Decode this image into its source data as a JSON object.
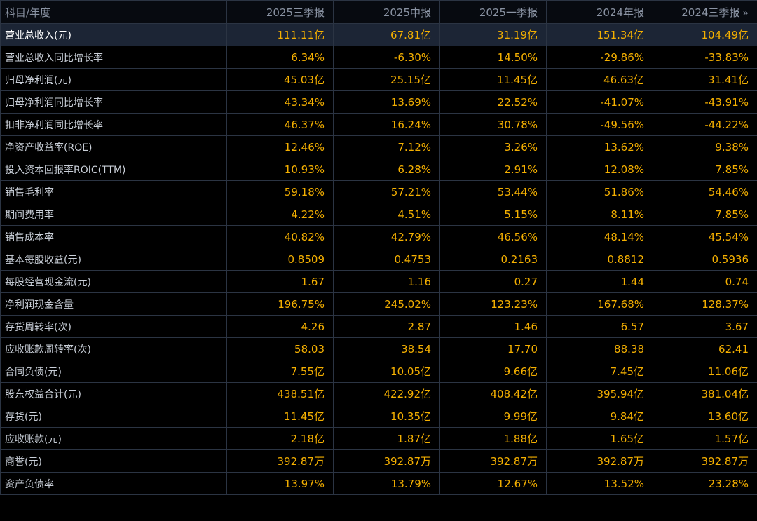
{
  "header": {
    "label": "科目/年度",
    "periods": [
      "2025三季报",
      "2025中报",
      "2025一季报",
      "2024年报",
      "2024三季报"
    ],
    "more_glyph": "»"
  },
  "rows": [
    {
      "label": "营业总收入(元)",
      "values": [
        "111.11亿",
        "67.81亿",
        "31.19亿",
        "151.34亿",
        "104.49亿"
      ]
    },
    {
      "label": "营业总收入同比增长率",
      "values": [
        "6.34%",
        "-6.30%",
        "14.50%",
        "-29.86%",
        "-33.83%"
      ]
    },
    {
      "label": "归母净利润(元)",
      "values": [
        "45.03亿",
        "25.15亿",
        "11.45亿",
        "46.63亿",
        "31.41亿"
      ]
    },
    {
      "label": "归母净利润同比增长率",
      "values": [
        "43.34%",
        "13.69%",
        "22.52%",
        "-41.07%",
        "-43.91%"
      ]
    },
    {
      "label": "扣非净利润同比增长率",
      "values": [
        "46.37%",
        "16.24%",
        "30.78%",
        "-49.56%",
        "-44.22%"
      ]
    },
    {
      "label": "净资产收益率(ROE)",
      "values": [
        "12.46%",
        "7.12%",
        "3.26%",
        "13.62%",
        "9.38%"
      ]
    },
    {
      "label": "投入资本回报率ROIC(TTM)",
      "values": [
        "10.93%",
        "6.28%",
        "2.91%",
        "12.08%",
        "7.85%"
      ]
    },
    {
      "label": "销售毛利率",
      "values": [
        "59.18%",
        "57.21%",
        "53.44%",
        "51.86%",
        "54.46%"
      ]
    },
    {
      "label": "期间费用率",
      "values": [
        "4.22%",
        "4.51%",
        "5.15%",
        "8.11%",
        "7.85%"
      ]
    },
    {
      "label": "销售成本率",
      "values": [
        "40.82%",
        "42.79%",
        "46.56%",
        "48.14%",
        "45.54%"
      ]
    },
    {
      "label": "基本每股收益(元)",
      "values": [
        "0.8509",
        "0.4753",
        "0.2163",
        "0.8812",
        "0.5936"
      ]
    },
    {
      "label": "每股经营现金流(元)",
      "values": [
        "1.67",
        "1.16",
        "0.27",
        "1.44",
        "0.74"
      ]
    },
    {
      "label": "净利润现金含量",
      "values": [
        "196.75%",
        "245.02%",
        "123.23%",
        "167.68%",
        "128.37%"
      ]
    },
    {
      "label": "存货周转率(次)",
      "values": [
        "4.26",
        "2.87",
        "1.46",
        "6.57",
        "3.67"
      ]
    },
    {
      "label": "应收账款周转率(次)",
      "values": [
        "58.03",
        "38.54",
        "17.70",
        "88.38",
        "62.41"
      ]
    },
    {
      "label": "合同负债(元)",
      "values": [
        "7.55亿",
        "10.05亿",
        "9.66亿",
        "7.45亿",
        "11.06亿"
      ]
    },
    {
      "label": "股东权益合计(元)",
      "values": [
        "438.51亿",
        "422.92亿",
        "408.42亿",
        "395.94亿",
        "381.04亿"
      ]
    },
    {
      "label": "存货(元)",
      "values": [
        "11.45亿",
        "10.35亿",
        "9.99亿",
        "9.84亿",
        "13.60亿"
      ]
    },
    {
      "label": "应收账款(元)",
      "values": [
        "2.18亿",
        "1.87亿",
        "1.88亿",
        "1.65亿",
        "1.57亿"
      ]
    },
    {
      "label": "商誉(元)",
      "values": [
        "392.87万",
        "392.87万",
        "392.87万",
        "392.87万",
        "392.87万"
      ]
    },
    {
      "label": "资产负债率",
      "values": [
        "13.97%",
        "13.79%",
        "12.67%",
        "13.52%",
        "23.28%"
      ]
    }
  ],
  "highlighted_row": 0,
  "colors": {
    "background": "#000000",
    "value_text": "#f5b000",
    "label_text": "#c9cfd8",
    "header_text": "#8a93a3",
    "grid_line": "#2b3443",
    "highlight_row": "#1c2535"
  }
}
